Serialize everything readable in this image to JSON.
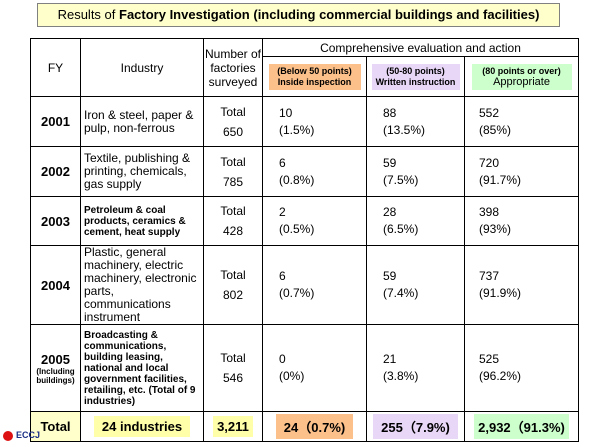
{
  "title": {
    "prefix": "Results of ",
    "bold": "Factory Investigation (including commercial buildings and facilities)"
  },
  "headers": {
    "fy": "FY",
    "industry": "Industry",
    "number": "Number of factories surveyed",
    "comprehensive": "Comprehensive evaluation and action",
    "c1": "(Below 50 points) Inside inspection",
    "c2": "(50-80 points) Written instruction",
    "c3_a": "(80 points or over)",
    "c3_b": "Appropriate"
  },
  "rows": [
    {
      "fy": "2001",
      "fy_note": "",
      "industry": "Iron & steel, paper & pulp, non-ferrous",
      "total_label": "Total",
      "total": "650",
      "c1": "10",
      "c1p": "(1.5%)",
      "c2": "88",
      "c2p": "(13.5%)",
      "c3": "552",
      "c3p": "(85%)"
    },
    {
      "fy": "2002",
      "fy_note": "",
      "industry": "Textile, publishing & printing, chemicals, gas supply",
      "total_label": "Total",
      "total": "785",
      "c1": "6",
      "c1p": "(0.8%)",
      "c2": "59",
      "c2p": "(7.5%)",
      "c3": "720",
      "c3p": "(91.7%)"
    },
    {
      "fy": "2003",
      "fy_note": "",
      "industry": "Petroleum & coal products, ceramics & cement, heat supply",
      "total_label": "Total",
      "total": "428",
      "c1": "2",
      "c1p": "(0.5%)",
      "c2": "28",
      "c2p": "(6.5%)",
      "c3": "398",
      "c3p": "(93%)"
    },
    {
      "fy": "2004",
      "fy_note": "",
      "industry": "Plastic, general machinery, electric machinery, electronic parts, communications instrument",
      "total_label": "Total",
      "total": "802",
      "c1": "6",
      "c1p": "(0.7%)",
      "c2": "59",
      "c2p": "(7.4%)",
      "c3": "737",
      "c3p": "(91.9%)"
    },
    {
      "fy": "2005",
      "fy_note": "(Including buildings)",
      "industry": "Broadcasting & communications, building leasing, national and local government facilities, retailing, etc. (Total of 9 industries)",
      "total_label": "Total",
      "total": "546",
      "c1": "0",
      "c1p": "(0%)",
      "c2": "21",
      "c2p": "(3.8%)",
      "c3": "525",
      "c3p": "(96.2%)"
    }
  ],
  "total": {
    "label": "Total",
    "industry": "24 industries",
    "number": "3,211",
    "c1": "24（0.7%)",
    "c2": "255（7.9%)",
    "c3": "2,932（91.3%)"
  },
  "logo": "ECCJ"
}
